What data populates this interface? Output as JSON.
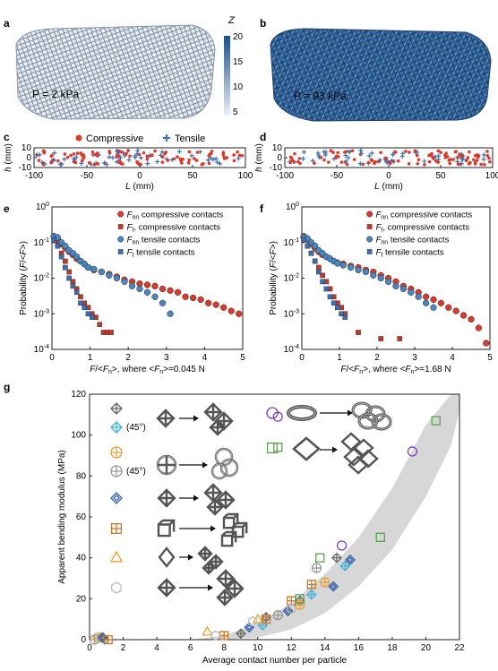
{
  "panels": {
    "a": {
      "letter": "a",
      "pressure": "P = 2 kPa"
    },
    "b": {
      "letter": "b",
      "pressure": "P = 93 kPa"
    },
    "colorbar": {
      "title": "Z",
      "ticks": [
        "20",
        "15",
        "10",
        "5"
      ],
      "low_color": "#e8eef5",
      "high_color": "#1c4f86"
    },
    "c": {
      "letter": "c",
      "legend": [
        "Compressive",
        "Tensile"
      ]
    },
    "d": {
      "letter": "d"
    },
    "e": {
      "letter": "e",
      "xlabel": "F/<Fn>, where <Fn>=0.045 N"
    },
    "f": {
      "letter": "f",
      "xlabel": "F/<Fn>, where <Fn>=1.68 N"
    },
    "g": {
      "letter": "g",
      "ylabel": "Apparent bending modulus (MPa)",
      "xlabel": "Average contact number per particle",
      "angle_tag_1": "(45°)",
      "angle_tag_2": "(45°)"
    }
  },
  "colors": {
    "compressive": "#d93a2b",
    "tensile": "#3d6fb0",
    "band": "#c9c9c9"
  },
  "chart_data": [
    {
      "type": "scatter",
      "panel": "c",
      "xlabel": "L (mm)",
      "ylabel": "h (mm)",
      "xlim": [
        -100,
        100
      ],
      "ylim": [
        -10,
        10
      ],
      "xticks": [
        -100,
        -50,
        0,
        50,
        100
      ],
      "yticks": [
        10,
        0,
        -10
      ],
      "series": [
        {
          "name": "Compressive"
        },
        {
          "name": "Tensile"
        }
      ]
    },
    {
      "type": "scatter",
      "panel": "d",
      "xlabel": "L (mm)",
      "ylabel": "h (mm)",
      "xlim": [
        -100,
        100
      ],
      "ylim": [
        -10,
        10
      ],
      "xticks": [
        -100,
        -50,
        0,
        50,
        100
      ],
      "yticks": [
        10,
        0,
        -10
      ]
    },
    {
      "type": "scatter",
      "panel": "e",
      "yscale": "log",
      "xlabel": "F/<Fn>, where <Fn>=0.045 N",
      "ylabel": "Probability (F/<F>)",
      "xlim": [
        0,
        5
      ],
      "ylim": [
        0.0001,
        1
      ],
      "xticks": [
        0,
        1,
        2,
        3,
        4,
        5
      ],
      "ytick_exponents": [
        0,
        -1,
        -2,
        -3,
        -4
      ],
      "legend": "top-right",
      "series": [
        {
          "name": "Fnn compressive contacts",
          "label_main": "F",
          "label_sub": "nn",
          "label_rest": " compressive contacts",
          "marker": "circle",
          "color": "#d93a2b",
          "x": [
            0.05,
            0.15,
            0.25,
            0.35,
            0.45,
            0.55,
            0.65,
            0.75,
            0.85,
            0.95,
            1.1,
            1.3,
            1.5,
            1.7,
            1.9,
            2.1,
            2.3,
            2.5,
            2.7,
            2.9,
            3.1,
            3.3,
            3.5,
            3.7,
            3.9,
            4.1,
            4.3,
            4.5,
            4.7,
            4.9
          ],
          "y": [
            0.15,
            0.12,
            0.09,
            0.07,
            0.055,
            0.045,
            0.035,
            0.03,
            0.025,
            0.02,
            0.017,
            0.015,
            0.013,
            0.011,
            0.009,
            0.008,
            0.007,
            0.0065,
            0.006,
            0.005,
            0.0045,
            0.004,
            0.003,
            0.0028,
            0.0025,
            0.002,
            0.0018,
            0.0015,
            0.0012,
            0.001
          ]
        },
        {
          "name": "Ft compressive contacts",
          "label_main": "F",
          "label_sub": "t",
          "label_rest": ", compressive contacts",
          "marker": "square",
          "color": "#c0392b",
          "x": [
            0.05,
            0.15,
            0.25,
            0.35,
            0.45,
            0.55,
            0.65,
            0.75,
            0.85,
            0.95,
            1.05,
            1.15,
            1.25,
            1.35,
            1.45,
            1.55
          ],
          "y": [
            0.13,
            0.09,
            0.05,
            0.03,
            0.015,
            0.008,
            0.005,
            0.003,
            0.002,
            0.0015,
            0.001,
            0.0008,
            0.0005,
            0.0003,
            0.0003,
            0.0003
          ]
        },
        {
          "name": "Fnn tensile contacts",
          "label_main": "F",
          "label_sub": "nn",
          "label_rest": " tensile contacts",
          "marker": "circle",
          "color": "#4a86bf",
          "x": [
            0.05,
            0.15,
            0.25,
            0.35,
            0.45,
            0.55,
            0.65,
            0.75,
            0.85,
            0.95,
            1.1,
            1.3,
            1.5,
            1.7,
            1.9,
            2.1,
            2.3,
            2.5,
            2.7,
            2.9,
            3.1
          ],
          "y": [
            0.15,
            0.14,
            0.1,
            0.08,
            0.06,
            0.05,
            0.04,
            0.03,
            0.025,
            0.02,
            0.018,
            0.015,
            0.012,
            0.01,
            0.008,
            0.006,
            0.005,
            0.004,
            0.003,
            0.002,
            0.001
          ]
        },
        {
          "name": "Ft tensile contacts",
          "label_main": "F",
          "label_sub": "t",
          "label_rest": " tensile contacts",
          "marker": "square",
          "color": "#3d6fb0",
          "x": [
            0.05,
            0.15,
            0.25,
            0.35,
            0.45,
            0.55,
            0.65,
            0.75,
            0.85,
            0.95,
            1.05
          ],
          "y": [
            0.12,
            0.08,
            0.04,
            0.02,
            0.01,
            0.006,
            0.004,
            0.002,
            0.0015,
            0.001,
            0.0008
          ]
        }
      ]
    },
    {
      "type": "scatter",
      "panel": "f",
      "yscale": "log",
      "xlabel": "F/<Fn>, where <Fn>=1.68 N",
      "ylabel": "Probability (F/<F>)",
      "xlim": [
        0,
        5
      ],
      "ylim": [
        0.0001,
        1
      ],
      "xticks": [
        0,
        1,
        2,
        3,
        4,
        5
      ],
      "ytick_exponents": [
        0,
        -1,
        -2,
        -3,
        -4
      ],
      "legend": "top-right",
      "series": [
        {
          "name": "Fnn compressive contacts",
          "label_main": "F",
          "label_sub": "nn",
          "label_rest": " compressive contacts",
          "marker": "circle",
          "color": "#d93a2b",
          "x": [
            0.05,
            0.15,
            0.25,
            0.35,
            0.45,
            0.55,
            0.65,
            0.75,
            0.85,
            0.95,
            1.1,
            1.3,
            1.5,
            1.7,
            1.9,
            2.1,
            2.3,
            2.5,
            2.7,
            2.9,
            3.1,
            3.3,
            3.5,
            3.7,
            3.9,
            4.1,
            4.3,
            4.5,
            4.7,
            4.9
          ],
          "y": [
            0.15,
            0.12,
            0.09,
            0.07,
            0.055,
            0.045,
            0.04,
            0.035,
            0.03,
            0.027,
            0.025,
            0.022,
            0.02,
            0.017,
            0.015,
            0.012,
            0.01,
            0.008,
            0.006,
            0.005,
            0.004,
            0.003,
            0.0025,
            0.002,
            0.0015,
            0.0012,
            0.0009,
            0.0007,
            0.0004,
            0.00015
          ]
        },
        {
          "name": "Ft compressive contacts",
          "label_main": "F",
          "label_sub": "t",
          "label_rest": ", compressive contacts",
          "marker": "square",
          "color": "#c0392b",
          "x": [
            0.05,
            0.15,
            0.25,
            0.35,
            0.45,
            0.55,
            0.65,
            0.75,
            0.85,
            0.95,
            1.05,
            1.15,
            1.5,
            2.1,
            2.6
          ],
          "y": [
            0.12,
            0.08,
            0.05,
            0.03,
            0.02,
            0.012,
            0.008,
            0.005,
            0.003,
            0.002,
            0.0015,
            0.001,
            0.0003,
            0.0002,
            0.0002
          ]
        },
        {
          "name": "Fnn tensile contacts",
          "label_main": "F",
          "label_sub": "nn",
          "label_rest": " tensile contacts",
          "marker": "circle",
          "color": "#4a86bf",
          "x": [
            0.05,
            0.15,
            0.25,
            0.35,
            0.45,
            0.55,
            0.65,
            0.75,
            0.85,
            0.95,
            1.1,
            1.3,
            1.5,
            1.7,
            1.9,
            2.1,
            2.3,
            2.5,
            2.7,
            2.9,
            3.1,
            3.3,
            3.5
          ],
          "y": [
            0.14,
            0.13,
            0.1,
            0.08,
            0.06,
            0.05,
            0.04,
            0.035,
            0.03,
            0.026,
            0.023,
            0.02,
            0.017,
            0.015,
            0.012,
            0.01,
            0.008,
            0.006,
            0.005,
            0.004,
            0.003,
            0.002,
            0.0015
          ]
        },
        {
          "name": "Ft tensile contacts",
          "label_main": "F",
          "label_sub": "t",
          "label_rest": " tensile contacts",
          "marker": "square",
          "color": "#3d6fb0",
          "x": [
            0.05,
            0.15,
            0.25,
            0.35,
            0.45,
            0.55,
            0.65,
            0.75,
            0.85,
            0.95,
            1.05,
            1.15
          ],
          "y": [
            0.12,
            0.08,
            0.05,
            0.03,
            0.015,
            0.008,
            0.005,
            0.003,
            0.002,
            0.0015,
            0.001,
            0.0008
          ]
        }
      ]
    },
    {
      "type": "scatter",
      "panel": "g",
      "xlabel": "Average contact number per particle",
      "ylabel": "Apparent bending modulus (MPa)",
      "xlim": [
        0,
        22
      ],
      "ylim": [
        0,
        120
      ],
      "xticks": [
        0,
        2,
        4,
        6,
        8,
        10,
        12,
        14,
        16,
        18,
        20,
        22
      ],
      "yticks": [
        0,
        20,
        40,
        60,
        80,
        100,
        120
      ],
      "series": [
        {
          "marker": "crossed-diamond",
          "color": "#666666",
          "x": [
            0.7,
            9.0,
            10.5,
            12.5,
            14.7
          ],
          "y": [
            1,
            3,
            11,
            19,
            40
          ]
        },
        {
          "marker": "crossed-diamond",
          "color": "#3fb3e0",
          "angle": "(45°)",
          "x": [
            0.9,
            10.3,
            13.2,
            15.2
          ],
          "y": [
            0,
            7,
            22,
            36
          ]
        },
        {
          "marker": "crossed-circle",
          "color": "#e8a040",
          "x": [
            0.5,
            12.5,
            14.0
          ],
          "y": [
            1,
            17,
            28
          ]
        },
        {
          "marker": "crossed-circle",
          "color": "#999999",
          "angle": "(45°)",
          "x": [
            0.3,
            11.2,
            13.5
          ],
          "y": [
            0,
            12,
            35
          ]
        },
        {
          "marker": "diamond",
          "color": "#2e5aa8",
          "x": [
            0.8,
            9.5,
            11.8,
            14.5,
            15.5
          ],
          "y": [
            1,
            6,
            14,
            26,
            39
          ]
        },
        {
          "marker": "boxed-cross",
          "color": "#c8782a",
          "x": [
            1.1,
            8.0,
            10.5,
            12.0,
            13.2
          ],
          "y": [
            0,
            2,
            10,
            19,
            27
          ]
        },
        {
          "marker": "triangle",
          "color": "#f0a030",
          "x": [
            7.0,
            10.0
          ],
          "y": [
            4,
            10
          ]
        },
        {
          "marker": "hexagon",
          "color": "#bbbbbb",
          "x": [
            7.5,
            9.7,
            12.0
          ],
          "y": [
            2,
            9,
            15
          ]
        },
        {
          "marker": "circle",
          "color": "#7a3fc2",
          "x": [
            11.2,
            15.0,
            19.2
          ],
          "y": [
            109,
            46,
            92
          ]
        },
        {
          "marker": "square",
          "color": "#5aa14e",
          "x": [
            11.2,
            12.5,
            13.7,
            17.3,
            20.6
          ],
          "y": [
            94,
            20,
            40,
            50,
            107
          ]
        }
      ],
      "band": {
        "x": [
          6.0,
          8,
          10,
          12,
          14,
          16,
          18,
          20,
          21.5,
          22.0
        ],
        "low": [
          0,
          0,
          1,
          5,
          13,
          26,
          44,
          70,
          95,
          112
        ],
        "high": [
          0,
          2,
          8,
          18,
          32,
          50,
          74,
          105,
          120,
          120
        ]
      }
    }
  ]
}
